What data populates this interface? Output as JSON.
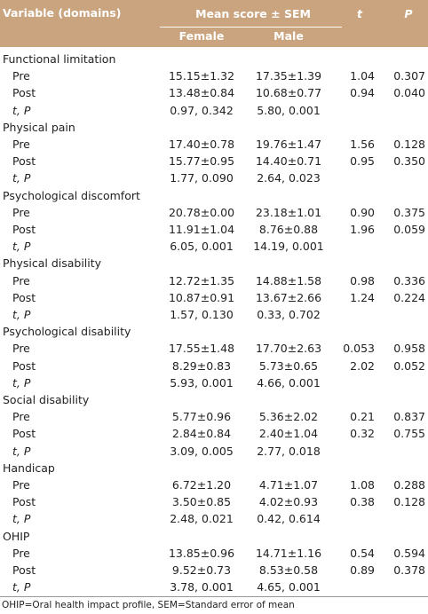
{
  "table": {
    "header": {
      "variable": "Variable (domains)",
      "mean_score": "Mean score ± SEM",
      "t": "t",
      "p": "P",
      "female": "Female",
      "male": "Male"
    },
    "groups": [
      {
        "name": "Functional limitation",
        "rows": [
          [
            "Pre",
            "15.15±1.32",
            "17.35±1.39",
            "1.04",
            "0.307"
          ],
          [
            "Post",
            "13.48±0.84",
            "10.68±0.77",
            "0.94",
            "0.040"
          ],
          [
            "t, P",
            "0.97, 0.342",
            "5.80, 0.001"
          ]
        ]
      },
      {
        "name": "Physical pain",
        "rows": [
          [
            "Pre",
            "17.40±0.78",
            "19.76±1.47",
            "1.56",
            "0.128"
          ],
          [
            "Post",
            "15.77±0.95",
            "14.40±0.71",
            "0.95",
            "0.350"
          ],
          [
            "t, P",
            "1.77, 0.090",
            "2.64, 0.023"
          ]
        ]
      },
      {
        "name": "Psychological discomfort",
        "rows": [
          [
            "Pre",
            "20.78±0.00",
            "23.18±1.01",
            "0.90",
            "0.375"
          ],
          [
            "Post",
            "11.91±1.04",
            "8.76±0.88",
            "1.96",
            "0.059"
          ],
          [
            "t, P",
            "6.05, 0.001",
            "14.19, 0.001"
          ]
        ]
      },
      {
        "name": "Physical disability",
        "rows": [
          [
            "Pre",
            "12.72±1.35",
            "14.88±1.58",
            "0.98",
            "0.336"
          ],
          [
            "Post",
            "10.87±0.91",
            "13.67±2.66",
            "1.24",
            "0.224"
          ],
          [
            "t, P",
            "1.57, 0.130",
            "0.33, 0.702"
          ]
        ]
      },
      {
        "name": "Psychological disability",
        "rows": [
          [
            "Pre",
            "17.55±1.48",
            "17.70±2.63",
            "0.053",
            "0.958"
          ],
          [
            "Post",
            "8.29±0.83",
            "5.73±0.65",
            "2.02",
            "0.052"
          ],
          [
            "t, P",
            "5.93, 0.001",
            "4.66, 0.001"
          ]
        ]
      },
      {
        "name": "Social disability",
        "rows": [
          [
            "Pre",
            "5.77±0.96",
            "5.36±2.02",
            "0.21",
            "0.837"
          ],
          [
            "Post",
            "2.84±0.84",
            "2.40±1.04",
            "0.32",
            "0.755"
          ],
          [
            "t, P",
            "3.09, 0.005",
            "2.77, 0.018"
          ]
        ]
      },
      {
        "name": "Handicap",
        "rows": [
          [
            "Pre",
            "6.72±1.20",
            "4.71±1.07",
            "1.08",
            "0.288"
          ],
          [
            "Post",
            "3.50±0.85",
            "4.02±0.93",
            "0.38",
            "0.128"
          ],
          [
            "t, P",
            "2.48, 0.021",
            "0.42, 0.614"
          ]
        ]
      },
      {
        "name": "OHIP",
        "rows": [
          [
            "Pre",
            "13.85±0.96",
            "14.71±1.16",
            "0.54",
            "0.594"
          ],
          [
            "Post",
            "9.52±0.73",
            "8.53±0.58",
            "0.89",
            "0.378"
          ],
          [
            "t, P",
            "3.78, 0.001",
            "4.65, 0.001"
          ]
        ]
      }
    ],
    "footnote": "OHIP=Oral health impact profile, SEM=Standard error of mean"
  }
}
